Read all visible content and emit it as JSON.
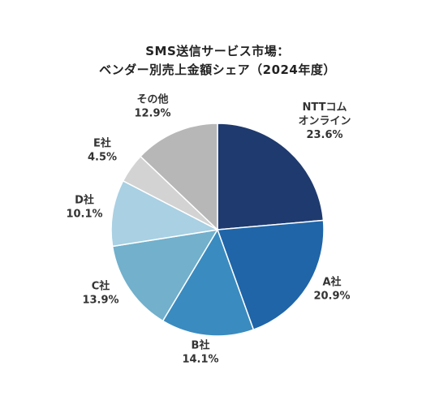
{
  "chart_data": {
    "type": "pie",
    "title_line1": "SMS送信サービス市場：",
    "title_line2": "ベンダー別売上金額シェア（2024年度）",
    "categories": [
      "NTTコムオンライン",
      "A社",
      "B社",
      "C社",
      "D社",
      "E社",
      "その他"
    ],
    "values": [
      23.6,
      20.9,
      14.1,
      13.9,
      10.1,
      4.5,
      12.9
    ],
    "labels": [
      {
        "lines": [
          "NTTコム",
          "オンライン",
          "23.6%"
        ]
      },
      {
        "lines": [
          "A社",
          "20.9%"
        ]
      },
      {
        "lines": [
          "B社",
          "14.1%"
        ]
      },
      {
        "lines": [
          "C社",
          "13.9%"
        ]
      },
      {
        "lines": [
          "D社",
          "10.1%"
        ]
      },
      {
        "lines": [
          "E社",
          "4.5%"
        ]
      },
      {
        "lines": [
          "その他",
          "12.9%"
        ]
      }
    ],
    "colors": [
      "#1f3a6e",
      "#1f65a8",
      "#3a8bc0",
      "#72b0cc",
      "#a9d0e3",
      "#d3d3d3",
      "#b7b7b7"
    ],
    "start_angle": "12 o'clock",
    "direction": "clockwise"
  }
}
